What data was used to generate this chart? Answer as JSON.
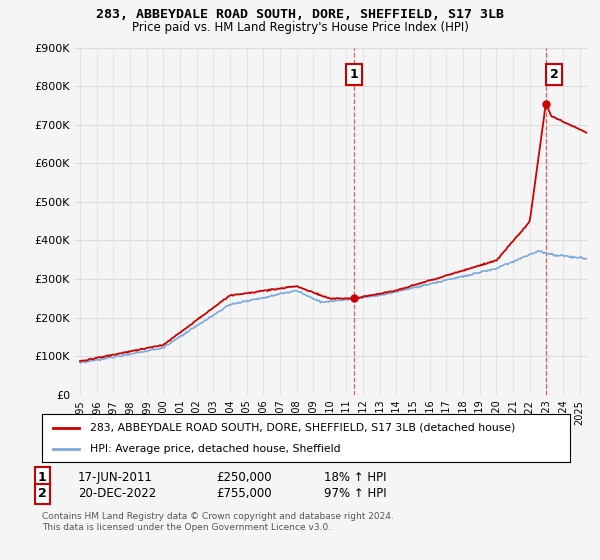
{
  "title": "283, ABBEYDALE ROAD SOUTH, DORE, SHEFFIELD, S17 3LB",
  "subtitle": "Price paid vs. HM Land Registry's House Price Index (HPI)",
  "legend_line1": "283, ABBEYDALE ROAD SOUTH, DORE, SHEFFIELD, S17 3LB (detached house)",
  "legend_line2": "HPI: Average price, detached house, Sheffield",
  "annotation1_label": "1",
  "annotation1_date": "17-JUN-2011",
  "annotation1_price": "£250,000",
  "annotation1_hpi": "18% ↑ HPI",
  "annotation2_label": "2",
  "annotation2_date": "20-DEC-2022",
  "annotation2_price": "£755,000",
  "annotation2_hpi": "97% ↑ HPI",
  "footer": "Contains HM Land Registry data © Crown copyright and database right 2024.\nThis data is licensed under the Open Government Licence v3.0.",
  "ylim": [
    0,
    900000
  ],
  "yticks": [
    0,
    100000,
    200000,
    300000,
    400000,
    500000,
    600000,
    700000,
    800000,
    900000
  ],
  "ytick_labels": [
    "£0",
    "£100K",
    "£200K",
    "£300K",
    "£400K",
    "£500K",
    "£600K",
    "£700K",
    "£800K",
    "£900K"
  ],
  "sale1_year": 2011.46,
  "sale1_price": 250000,
  "sale2_year": 2022.97,
  "sale2_price": 755000,
  "hpi_color": "#7aaadd",
  "price_color": "#cc0000",
  "vline_color": "#cc0000",
  "background_color": "#f5f5f5",
  "grid_color": "#dddddd",
  "years_start": 1995,
  "years_end": 2025,
  "xlim_left": 1994.7,
  "xlim_right": 2025.5
}
